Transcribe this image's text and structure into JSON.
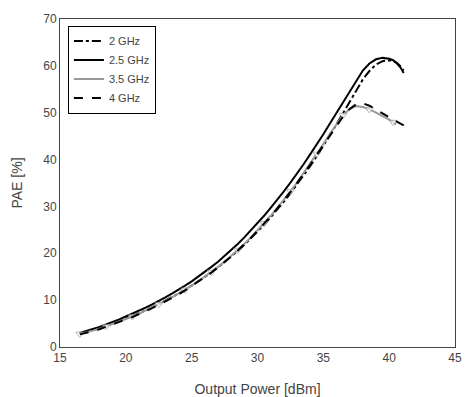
{
  "chart_data": {
    "type": "line",
    "xlabel": "Output Power [dBm]",
    "ylabel": "PAE [%]",
    "xlim": [
      15,
      45
    ],
    "ylim": [
      0,
      70
    ],
    "xticks": [
      15,
      20,
      25,
      30,
      35,
      40,
      45
    ],
    "yticks": [
      0,
      10,
      20,
      30,
      40,
      50,
      60,
      70
    ],
    "grid": false,
    "legend": "upper left",
    "series": [
      {
        "name": "2 GHz",
        "color": "#000000",
        "line_style": "dashdot",
        "x": [
          16.5,
          17.0,
          17.5,
          18.0,
          18.5,
          19.0,
          19.5,
          20.0,
          20.5,
          21.0,
          21.5,
          22.0,
          22.5,
          23.0,
          23.5,
          24.0,
          24.5,
          25.0,
          25.5,
          26.0,
          26.5,
          27.0,
          27.5,
          28.0,
          28.5,
          29.0,
          29.5,
          30.0,
          30.5,
          31.0,
          31.5,
          32.0,
          32.5,
          33.0,
          33.5,
          34.0,
          34.5,
          35.0,
          35.5,
          36.0,
          36.5,
          37.0,
          37.5,
          38.0,
          38.5,
          39.0,
          39.5,
          40.0,
          40.3,
          40.6,
          40.9,
          41.1
        ],
        "values": [
          2.9,
          3.2,
          3.6,
          4.0,
          4.5,
          5.0,
          5.5,
          6.1,
          6.6,
          7.2,
          7.8,
          8.5,
          9.2,
          9.9,
          10.6,
          11.4,
          12.2,
          13.1,
          14.0,
          14.9,
          15.9,
          17.0,
          18.1,
          19.3,
          20.5,
          21.8,
          23.2,
          24.6,
          26.1,
          27.7,
          29.3,
          31.0,
          32.8,
          34.7,
          36.6,
          38.6,
          40.7,
          42.9,
          45.2,
          47.5,
          49.9,
          52.4,
          54.8,
          57.1,
          58.9,
          60.3,
          61.0,
          61.2,
          61.1,
          60.6,
          59.8,
          59.0
        ]
      },
      {
        "name": "2.5 GHz",
        "color": "#000000",
        "line_style": "solid",
        "x": [
          16.5,
          17.0,
          17.5,
          18.0,
          18.5,
          19.0,
          19.5,
          20.0,
          20.5,
          21.0,
          21.5,
          22.0,
          22.5,
          23.0,
          23.5,
          24.0,
          24.5,
          25.0,
          25.5,
          26.0,
          26.5,
          27.0,
          27.5,
          28.0,
          28.5,
          29.0,
          29.5,
          30.0,
          30.5,
          31.0,
          31.5,
          32.0,
          32.5,
          33.0,
          33.5,
          34.0,
          34.5,
          35.0,
          35.5,
          36.0,
          36.5,
          37.0,
          37.5,
          38.0,
          38.5,
          39.0,
          39.5,
          40.0,
          40.3,
          40.6,
          40.9,
          41.1
        ],
        "values": [
          3.0,
          3.4,
          3.8,
          4.3,
          4.8,
          5.3,
          5.9,
          6.5,
          7.1,
          7.7,
          8.4,
          9.1,
          9.8,
          10.6,
          11.4,
          12.2,
          13.1,
          14.0,
          15.0,
          16.0,
          17.1,
          18.2,
          19.4,
          20.7,
          22.0,
          23.4,
          24.9,
          26.4,
          28.0,
          29.7,
          31.4,
          33.2,
          35.1,
          37.0,
          39.0,
          41.1,
          43.2,
          45.4,
          47.7,
          50.0,
          52.4,
          54.7,
          57.0,
          59.0,
          60.5,
          61.4,
          61.7,
          61.5,
          61.2,
          60.5,
          59.5,
          58.5
        ]
      },
      {
        "name": "3.5 GHz",
        "color": "#999999",
        "line_style": "solid",
        "marker": "triangle-down",
        "x": [
          16.5,
          17.0,
          17.5,
          18.0,
          18.5,
          19.0,
          19.5,
          20.0,
          20.5,
          21.0,
          21.5,
          22.0,
          22.5,
          23.0,
          23.5,
          24.0,
          24.5,
          25.0,
          25.5,
          26.0,
          26.5,
          27.0,
          27.5,
          28.0,
          28.5,
          29.0,
          29.5,
          30.0,
          30.5,
          31.0,
          31.5,
          32.0,
          32.5,
          33.0,
          33.5,
          34.0,
          34.5,
          35.0,
          35.5,
          36.0,
          36.5,
          37.0,
          37.5,
          38.0,
          38.5,
          39.0,
          39.5,
          40.0,
          40.3,
          40.5
        ],
        "values": [
          2.8,
          3.1,
          3.5,
          3.9,
          4.4,
          4.9,
          5.4,
          6.0,
          6.5,
          7.1,
          7.8,
          8.4,
          9.1,
          9.8,
          10.6,
          11.4,
          12.2,
          13.1,
          14.0,
          15.0,
          16.0,
          17.1,
          18.2,
          19.4,
          20.7,
          22.0,
          23.4,
          24.9,
          26.4,
          28.0,
          29.7,
          31.4,
          33.2,
          35.1,
          37.1,
          39.1,
          41.2,
          43.3,
          45.5,
          47.6,
          49.5,
          50.8,
          51.4,
          51.2,
          50.7,
          50.0,
          49.3,
          48.5,
          48.0,
          47.5
        ]
      },
      {
        "name": "4 GHz",
        "color": "#000000",
        "line_style": "dash",
        "x": [
          16.5,
          17.0,
          17.5,
          18.0,
          18.5,
          19.0,
          19.5,
          20.0,
          20.5,
          21.0,
          21.5,
          22.0,
          22.5,
          23.0,
          23.5,
          24.0,
          24.5,
          25.0,
          25.5,
          26.0,
          26.5,
          27.0,
          27.5,
          28.0,
          28.5,
          29.0,
          29.5,
          30.0,
          30.5,
          31.0,
          31.5,
          32.0,
          32.5,
          33.0,
          33.5,
          34.0,
          34.5,
          35.0,
          35.5,
          36.0,
          36.5,
          37.0,
          37.5,
          38.0,
          38.5,
          39.0,
          39.5,
          40.0,
          40.5,
          41.0,
          41.3
        ],
        "values": [
          2.7,
          3.0,
          3.4,
          3.8,
          4.3,
          4.8,
          5.3,
          5.8,
          6.4,
          7.0,
          7.6,
          8.3,
          9.0,
          9.7,
          10.4,
          11.2,
          12.1,
          13.0,
          13.9,
          14.9,
          15.9,
          17.0,
          18.1,
          19.3,
          20.6,
          21.9,
          23.3,
          24.8,
          26.3,
          27.9,
          29.6,
          31.3,
          33.1,
          35.0,
          36.9,
          38.9,
          41.0,
          43.1,
          45.2,
          47.3,
          49.2,
          50.8,
          51.8,
          52.0,
          51.5,
          50.7,
          49.8,
          49.0,
          48.2,
          47.5,
          47.0
        ]
      }
    ]
  }
}
